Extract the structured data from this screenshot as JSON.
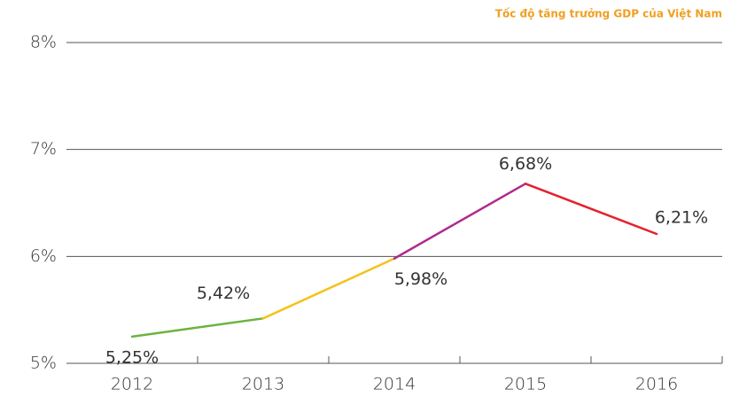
{
  "chart_data": {
    "type": "line",
    "title": "Tốc độ tăng trưởng GDP của Việt Nam",
    "categories": [
      "2012",
      "2013",
      "2014",
      "2015",
      "2016"
    ],
    "values": [
      5.25,
      5.42,
      5.98,
      6.68,
      6.21
    ],
    "value_labels": [
      "5,25%",
      "5,42%",
      "5,98%",
      "6,68%",
      "6,21%"
    ],
    "segment_colors": [
      "#6bb43f",
      "#f5c21b",
      "#b02a8c",
      "#e3222f"
    ],
    "ylim": [
      5,
      8
    ],
    "yticks": [
      {
        "value": 5,
        "label": "5%"
      },
      {
        "value": 6,
        "label": "6%"
      },
      {
        "value": 7,
        "label": "7%"
      },
      {
        "value": 8,
        "label": "8%"
      }
    ],
    "grid": true
  }
}
